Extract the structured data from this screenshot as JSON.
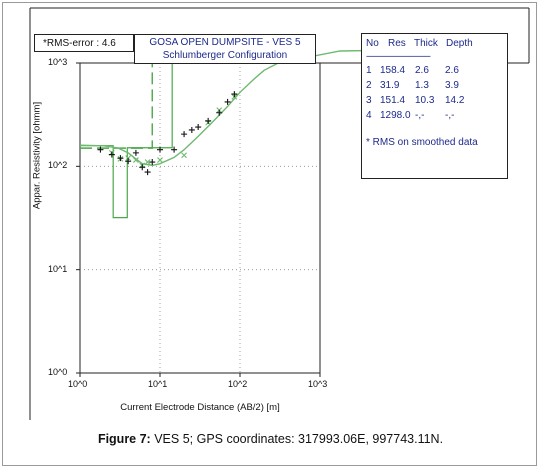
{
  "chart_data": {
    "type": "scatter",
    "title": "GOSA OPEN DUMPSITE - VES 5",
    "subtitle": "Schlumberger Configuration",
    "rms_label": "*RMS-error :  4.6",
    "xlabel": "Current Electrode Distance (AB/2) [m]",
    "ylabel": "Appar. Resistivity [ohmm]",
    "xscale": "log",
    "yscale": "log",
    "xlim": [
      1,
      1000
    ],
    "ylim": [
      1,
      1000
    ],
    "x_ticks": [
      "10^0",
      "10^1",
      "10^2",
      "10^3"
    ],
    "y_ticks": [
      "10^0",
      "10^1",
      "10^2",
      "10^3"
    ],
    "grid": "dotted major",
    "observed": [
      [
        1.8,
        145
      ],
      [
        2.5,
        130
      ],
      [
        3.2,
        120
      ],
      [
        4.0,
        112
      ],
      [
        5.0,
        135
      ],
      [
        6.0,
        98
      ],
      [
        7.0,
        88
      ],
      [
        8.0,
        110
      ],
      [
        10.0,
        145
      ],
      [
        15.0,
        145
      ],
      [
        20.0,
        205
      ],
      [
        25.0,
        225
      ],
      [
        30.0,
        240
      ],
      [
        40.0,
        275
      ],
      [
        55.0,
        330
      ],
      [
        70.0,
        420
      ],
      [
        85.0,
        500
      ]
    ],
    "calculated": [
      [
        2.5,
        135
      ],
      [
        3.2,
        118
      ],
      [
        4.0,
        120
      ],
      [
        5.0,
        115
      ],
      [
        6.0,
        102
      ],
      [
        7.0,
        110
      ],
      [
        10.0,
        115
      ],
      [
        20.0,
        128
      ],
      [
        40.0,
        265
      ],
      [
        55.0,
        350
      ],
      [
        85.0,
        470
      ]
    ],
    "smooth_curve": [
      [
        1,
        160
      ],
      [
        2,
        158
      ],
      [
        3,
        150
      ],
      [
        4,
        135
      ],
      [
        5,
        118
      ],
      [
        6,
        106
      ],
      [
        8,
        102
      ],
      [
        10,
        106
      ],
      [
        15,
        122
      ],
      [
        20,
        145
      ],
      [
        30,
        195
      ],
      [
        50,
        290
      ],
      [
        70,
        380
      ],
      [
        100,
        520
      ],
      [
        150,
        700
      ],
      [
        200,
        850
      ],
      [
        300,
        1000
      ]
    ],
    "layer_model_steps": [
      {
        "depth": 2.6,
        "res": 158.4
      },
      {
        "depth": 3.9,
        "res": 31.9
      },
      {
        "depth": 14.2,
        "res": 151.4
      },
      {
        "depth": null,
        "res": 1298.0
      }
    ],
    "smoothed_model_steps": [
      {
        "depth": 2.6,
        "res": 150
      },
      {
        "depth": 8.0,
        "res": 150
      },
      {
        "depth": 14.0,
        "res": 1298.0
      }
    ],
    "colors": {
      "curve": "#6fb96f",
      "model": "#4aa84a",
      "observed": "#111111",
      "calculated": "#6fb96f",
      "grid": "#8a8a8a",
      "text": "#1d2a8a"
    }
  },
  "layer_table": {
    "headers": [
      "No",
      "Res",
      "Thick",
      "Depth"
    ],
    "separator": "--------------------------------",
    "rows": [
      [
        "1",
        "158.4",
        "2.6",
        "2.6"
      ],
      [
        "2",
        "31.9",
        "1.3",
        "3.9"
      ],
      [
        "3",
        "151.4",
        "10.3",
        "14.2"
      ],
      [
        "4",
        "1298.0",
        "-,-",
        "-,-"
      ]
    ],
    "note": "* RMS on smoothed data"
  },
  "caption": {
    "label": "Figure 7:",
    "text": " VES 5; GPS coordinates: 317993.06E, 997743.11N."
  }
}
